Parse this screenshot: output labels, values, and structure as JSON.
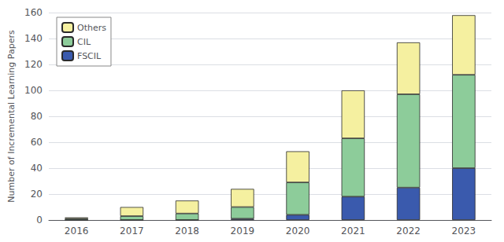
{
  "chart_data": {
    "type": "bar",
    "stacked": true,
    "categories": [
      "2016",
      "2017",
      "2018",
      "2019",
      "2020",
      "2021",
      "2022",
      "2023"
    ],
    "series": [
      {
        "name": "FSCIL",
        "color": "#3a5aad",
        "values": [
          0,
          0,
          0,
          1,
          4,
          18,
          25,
          40
        ]
      },
      {
        "name": "CIL",
        "color": "#8dcc9a",
        "values": [
          1,
          3,
          5,
          9,
          25,
          45,
          72,
          72
        ]
      },
      {
        "name": "Others",
        "color": "#f5f0a0",
        "values": [
          1,
          7,
          10,
          14,
          24,
          37,
          40,
          46
        ]
      }
    ],
    "ylabel": "Number of Incremental Learning Papers",
    "ylim": [
      0,
      160
    ],
    "yticks": [
      0,
      20,
      40,
      60,
      80,
      100,
      120,
      140,
      160
    ],
    "grid": true,
    "legend": "upper left"
  }
}
